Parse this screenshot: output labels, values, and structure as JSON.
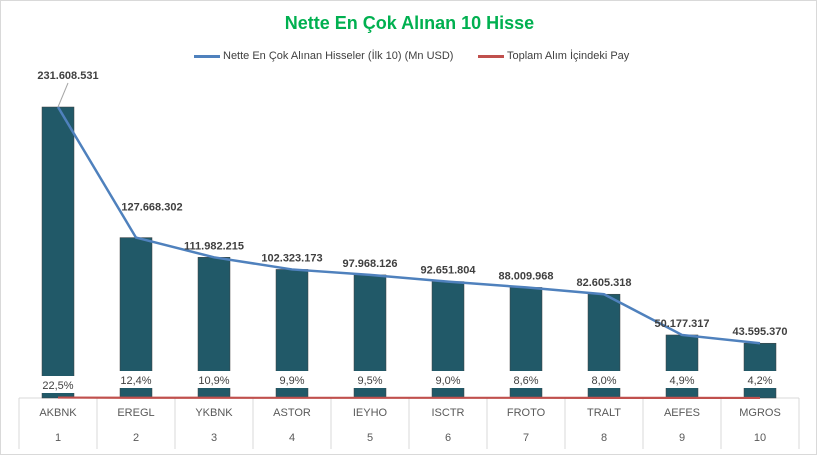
{
  "chart_data": {
    "type": "bar",
    "title": "Nette En Çok Alınan 10 Hisse",
    "categories": [
      "AKBNK",
      "EREGL",
      "YKBNK",
      "ASTOR",
      "IEYHO",
      "ISCTR",
      "FROTO",
      "TRALT",
      "AEFES",
      "MGROS"
    ],
    "ranks": [
      "1",
      "2",
      "3",
      "4",
      "5",
      "6",
      "7",
      "8",
      "9",
      "10"
    ],
    "series": [
      {
        "name": "Nette En Çok Alınan Hisseler (İlk 10) (Mn USD)",
        "type": "bar+line",
        "values": [
          231608531,
          127668302,
          111982215,
          102323173,
          97968126,
          92651804,
          88009968,
          82605318,
          50177317,
          43595370
        ],
        "labels": [
          "231.608.531",
          "127.668.302",
          "111.982.215",
          "102.323.173",
          "97.968.126",
          "92.651.804",
          "88.009.968",
          "82.605.318",
          "50.177.317",
          "43.595.370"
        ],
        "bar_color": "#215968",
        "line_color": "#4f81bd"
      },
      {
        "name": "Toplam Alım İçindeki Pay",
        "type": "line",
        "values": [
          22.5,
          12.4,
          10.9,
          9.9,
          9.5,
          9.0,
          8.6,
          8.0,
          4.9,
          4.2
        ],
        "labels": [
          "22,5%",
          "12,4%",
          "10,9%",
          "9,9%",
          "9,5%",
          "9,0%",
          "8,6%",
          "8,0%",
          "4,9%",
          "4,2%"
        ],
        "line_color": "#c0504d"
      }
    ],
    "ylim": [
      0,
      250000000
    ],
    "grid": false,
    "legend": "top"
  }
}
